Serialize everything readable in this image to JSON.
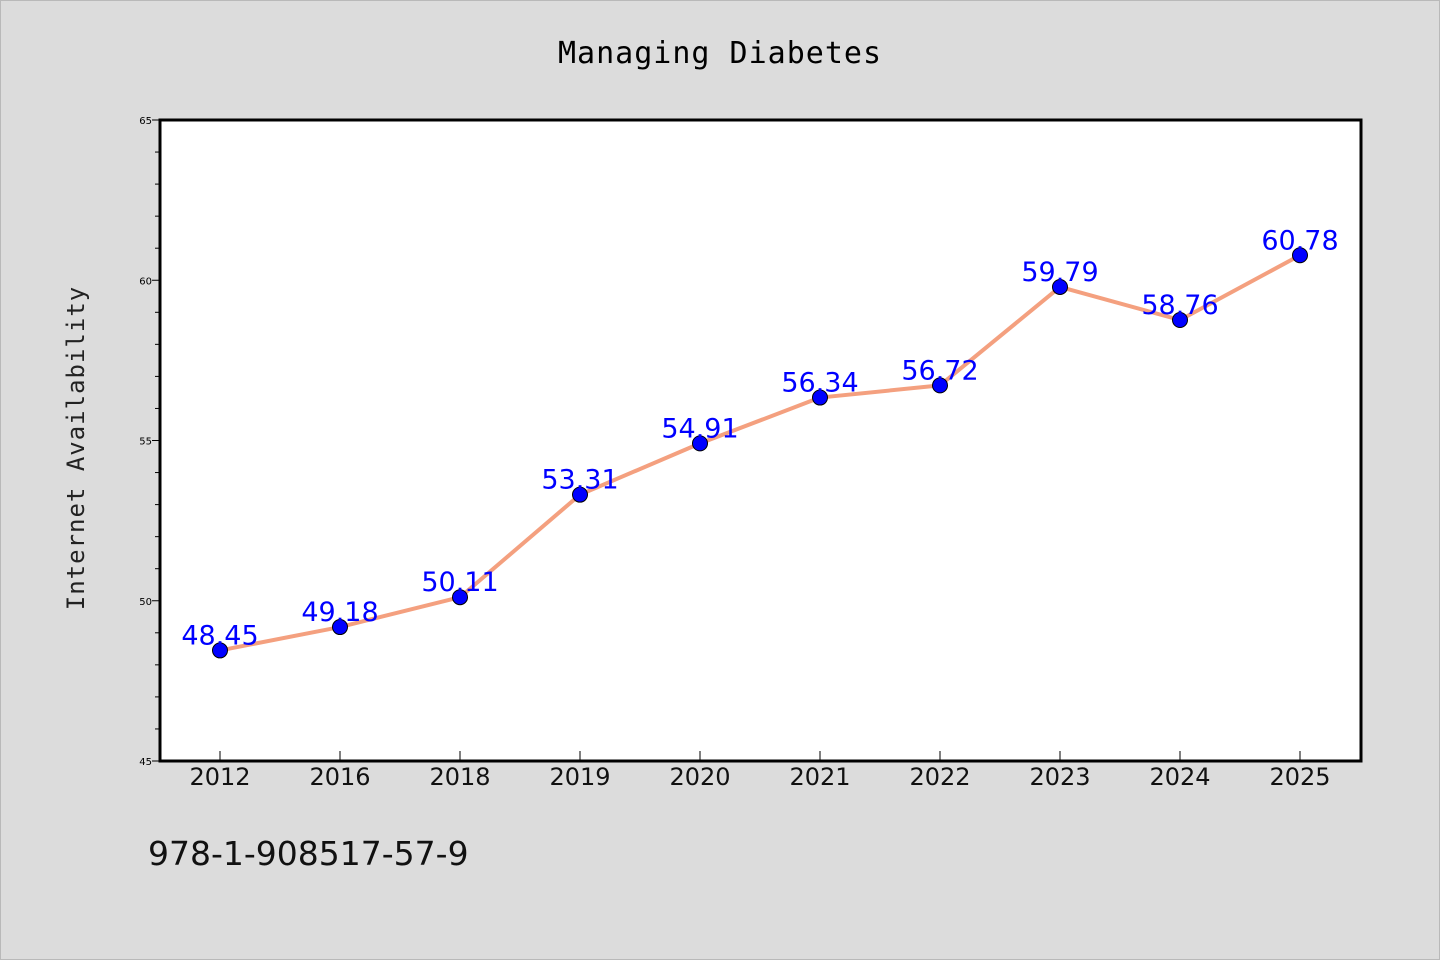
{
  "chart_data": {
    "type": "line",
    "title": "Managing Diabetes",
    "xlabel": "",
    "ylabel": "Internet Availability",
    "categories": [
      "2012",
      "2016",
      "2018",
      "2019",
      "2020",
      "2021",
      "2022",
      "2023",
      "2024",
      "2025"
    ],
    "series": [
      {
        "values": [
          48.45,
          49.18,
          50.11,
          53.31,
          54.91,
          56.34,
          56.72,
          59.79,
          58.76,
          60.78
        ],
        "line_color": "#f4a07f",
        "marker_color": "#0000ff"
      }
    ],
    "data_labels": [
      "48.45",
      "49.18",
      "50.11",
      "53.31",
      "54.91",
      "56.34",
      "56.72",
      "59.79",
      "58.76",
      "60.78"
    ],
    "ylim": [
      45,
      65
    ],
    "yticks": [
      "45",
      "50",
      "55",
      "60",
      "65"
    ],
    "grid": false,
    "legend": "none"
  },
  "footer": {
    "isbn": "978-1-908517-57-9"
  },
  "colors": {
    "background": "#dcdcdc",
    "plot_area": "#ffffff",
    "line": "#f4a07f",
    "marker": "#0000ff",
    "data_label": "#0000ff"
  }
}
